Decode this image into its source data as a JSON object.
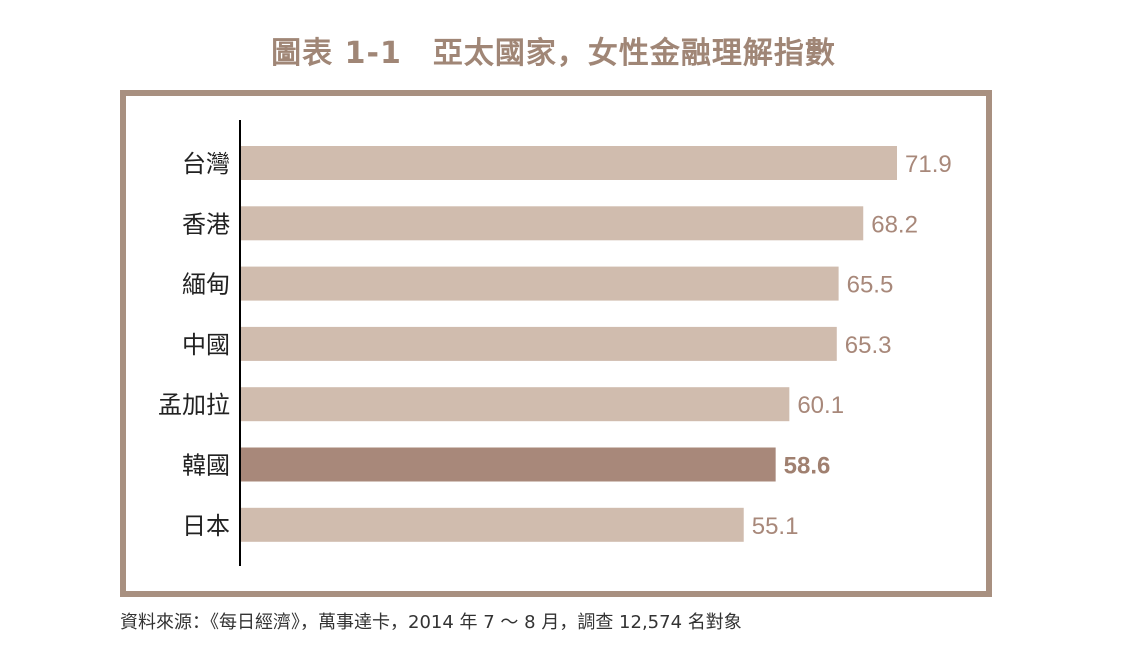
{
  "title": "圖表 1-1　亞太國家，女性金融理解指數",
  "source": "資料來源：《每日經濟》，萬事達卡，2014 年 7 ～ 8 月，調查 12,574 名對象",
  "colors": {
    "bar": "#d0bcae",
    "bar_highlight": "#a8887a",
    "value_text": "#a8887a",
    "highlight_text": "#a08070",
    "category_text": "#222222",
    "axis": "#000000"
  },
  "chart_data": {
    "type": "bar",
    "orientation": "horizontal",
    "title": "圖表 1-1　亞太國家，女性金融理解指數",
    "categories": [
      "台灣",
      "香港",
      "緬甸",
      "中國",
      "孟加拉",
      "韓國",
      "日本"
    ],
    "values": [
      71.9,
      68.2,
      65.5,
      65.3,
      60.1,
      58.6,
      55.1
    ],
    "value_labels": [
      "71.9",
      "68.2",
      "65.5",
      "65.3",
      "60.1",
      "58.6",
      "55.1"
    ],
    "highlight": "韓國",
    "xlim": [
      0,
      71.9
    ],
    "grid": false,
    "legend": "none"
  }
}
